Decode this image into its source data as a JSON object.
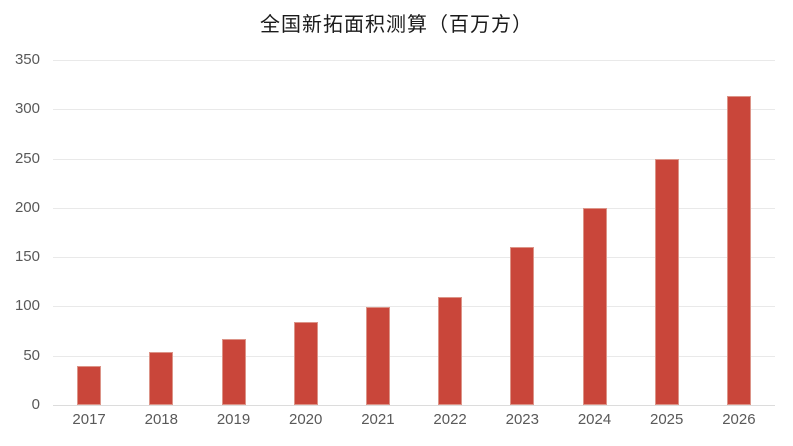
{
  "chart_data": {
    "type": "bar",
    "title": "全国新拓面积测算（百万方）",
    "categories": [
      "2017",
      "2018",
      "2019",
      "2020",
      "2021",
      "2022",
      "2023",
      "2024",
      "2025",
      "2026"
    ],
    "values": [
      40,
      54,
      67,
      84,
      99,
      110,
      160,
      200,
      250,
      313
    ],
    "xlabel": "",
    "ylabel": "",
    "ylim": [
      0,
      350
    ],
    "yticks": [
      0,
      50,
      100,
      150,
      200,
      250,
      300,
      350
    ],
    "grid": true,
    "legend_position": "none",
    "colors": {
      "bar_fill": "#c9463a",
      "bar_border": "#dc9488",
      "gridline": "#e9e9e9",
      "axis_baseline": "#dcdcdc",
      "tick_label": "#595959",
      "title": "#1a1a1a",
      "background": "#ffffff"
    }
  }
}
